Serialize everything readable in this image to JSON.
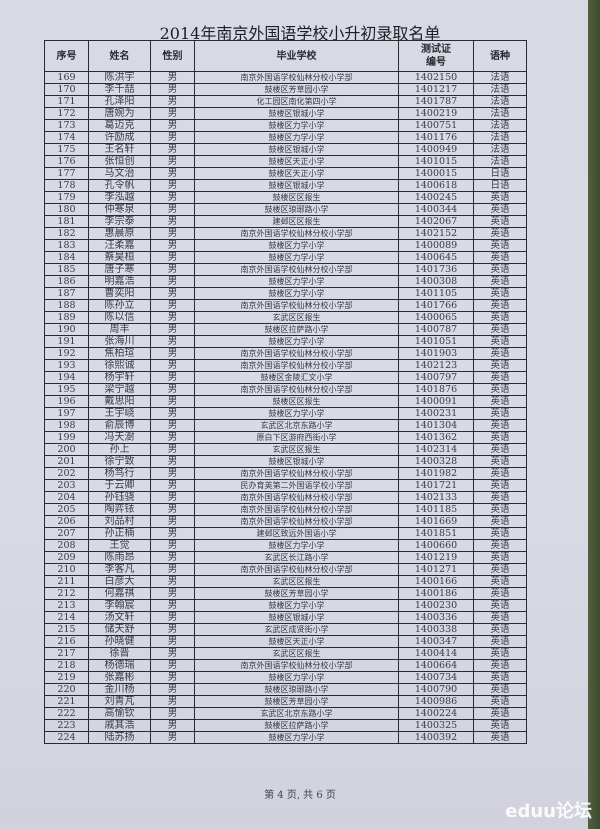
{
  "title": "2014年南京外国语学校小升初录取名单",
  "headers": {
    "no": "序号",
    "name": "姓名",
    "gender": "性别",
    "school": "毕业学校",
    "id_line1": "测试证",
    "id_line2": "编号",
    "lang": "语种"
  },
  "rows": [
    [
      "169",
      "陈洪宇",
      "男",
      "南京外国语学校仙林分校小学部",
      "1402150",
      "法语"
    ],
    [
      "170",
      "李千喆",
      "男",
      "鼓楼区芳草园小学",
      "1401217",
      "法语"
    ],
    [
      "171",
      "孔泽阳",
      "男",
      "化工园区南化第四小学",
      "1401787",
      "法语"
    ],
    [
      "172",
      "唐婉为",
      "男",
      "鼓楼区银城小学",
      "1400219",
      "法语"
    ],
    [
      "173",
      "葛迈克",
      "男",
      "鼓楼区力学小学",
      "1400751",
      "法语"
    ],
    [
      "174",
      "许励成",
      "男",
      "鼓楼区力学小学",
      "1401176",
      "法语"
    ],
    [
      "175",
      "王名轩",
      "男",
      "鼓楼区银城小学",
      "1400949",
      "法语"
    ],
    [
      "176",
      "张恒创",
      "男",
      "鼓楼区天正小学",
      "1401015",
      "法语"
    ],
    [
      "177",
      "马文治",
      "男",
      "鼓楼区天正小学",
      "1400015",
      "日语"
    ],
    [
      "178",
      "孔令帆",
      "男",
      "鼓楼区银城小学",
      "1400618",
      "日语"
    ],
    [
      "179",
      "李泓越",
      "男",
      "鼓楼区区报生",
      "1400245",
      "英语"
    ],
    [
      "180",
      "仲寒泉",
      "男",
      "鼓楼区琅琊路小学",
      "1400344",
      "英语"
    ],
    [
      "181",
      "李宗泰",
      "男",
      "建邺区区报生",
      "1402067",
      "英语"
    ],
    [
      "182",
      "惠晨原",
      "男",
      "南京外国语学校仙林分校小学部",
      "1402152",
      "英语"
    ],
    [
      "183",
      "汪柔嘉",
      "男",
      "鼓楼区力学小学",
      "1400089",
      "英语"
    ],
    [
      "184",
      "蔡昊桓",
      "男",
      "鼓楼区力学小学",
      "1400645",
      "英语"
    ],
    [
      "185",
      "唐子寒",
      "男",
      "南京外国语学校仙林分校小学部",
      "1401736",
      "英语"
    ],
    [
      "186",
      "明嘉浩",
      "男",
      "鼓楼区力学小学",
      "1400308",
      "英语"
    ],
    [
      "187",
      "曹奕阳",
      "男",
      "鼓楼区力学小学",
      "1401105",
      "英语"
    ],
    [
      "188",
      "陈孙立",
      "男",
      "南京外国语学校仙林分校小学部",
      "1401766",
      "英语"
    ],
    [
      "189",
      "陈以信",
      "男",
      "玄武区区报生",
      "1400065",
      "英语"
    ],
    [
      "190",
      "周丰",
      "男",
      "鼓楼区拉萨路小学",
      "1400787",
      "英语"
    ],
    [
      "191",
      "张海川",
      "男",
      "鼓楼区力学小学",
      "1401051",
      "英语"
    ],
    [
      "192",
      "焦柏瑄",
      "男",
      "南京外国语学校仙林分校小学部",
      "1401903",
      "英语"
    ],
    [
      "193",
      "徐熙诚",
      "男",
      "南京外国语学校仙林分校小学部",
      "1402123",
      "英语"
    ],
    [
      "194",
      "杨宇轩",
      "男",
      "鼓楼区金陵汇文小学",
      "1400797",
      "英语"
    ],
    [
      "195",
      "梁宁越",
      "男",
      "南京外国语学校仙林分校小学部",
      "1401876",
      "英语"
    ],
    [
      "196",
      "戴思阳",
      "男",
      "鼓楼区区报生",
      "1400091",
      "英语"
    ],
    [
      "197",
      "王宇峣",
      "男",
      "鼓楼区力学小学",
      "1400231",
      "英语"
    ],
    [
      "198",
      "俞辰博",
      "男",
      "玄武区北京东路小学",
      "1401304",
      "英语"
    ],
    [
      "199",
      "冯天澍",
      "男",
      "原白下区游府西街小学",
      "1401362",
      "英语"
    ],
    [
      "200",
      "孙上",
      "男",
      "玄武区区报生",
      "1402314",
      "英语"
    ],
    [
      "201",
      "徐宁致",
      "男",
      "鼓楼区银城小学",
      "1400328",
      "英语"
    ],
    [
      "202",
      "杨笃行",
      "男",
      "南京外国语学校仙林分校小学部",
      "1401982",
      "英语"
    ],
    [
      "203",
      "于云卿",
      "男",
      "民办育英第二外国语学校小学部",
      "1401721",
      "英语"
    ],
    [
      "204",
      "孙钰骁",
      "男",
      "南京外国语学校仙林分校小学部",
      "1402133",
      "英语"
    ],
    [
      "205",
      "陶弈铱",
      "男",
      "南京外国语学校仙林分校小学部",
      "1401185",
      "英语"
    ],
    [
      "206",
      "刘品村",
      "男",
      "南京外国语学校仙林分校小学部",
      "1401669",
      "英语"
    ],
    [
      "207",
      "孙正楠",
      "男",
      "建邺区致远外国语小学",
      "1401851",
      "英语"
    ],
    [
      "208",
      "王觉",
      "男",
      "鼓楼区力学小学",
      "1400660",
      "英语"
    ],
    [
      "209",
      "陈雨昂",
      "男",
      "玄武区长江路小学",
      "1401219",
      "英语"
    ],
    [
      "210",
      "李客凡",
      "男",
      "南京外国语学校仙林分校小学部",
      "1401271",
      "英语"
    ],
    [
      "211",
      "白彦大",
      "男",
      "玄武区区报生",
      "1400166",
      "英语"
    ],
    [
      "212",
      "何嘉祺",
      "男",
      "鼓楼区芳草园小学",
      "1400186",
      "英语"
    ],
    [
      "213",
      "李翰宸",
      "男",
      "鼓楼区力学小学",
      "1400230",
      "英语"
    ],
    [
      "214",
      "汤文轩",
      "男",
      "鼓楼区银城小学",
      "1400336",
      "英语"
    ],
    [
      "215",
      "储天舒",
      "男",
      "玄武区成贤街小学",
      "1400338",
      "英语"
    ],
    [
      "216",
      "孙晓健",
      "男",
      "鼓楼区天正小学",
      "1400347",
      "英语"
    ],
    [
      "217",
      "徐晋",
      "男",
      "玄武区区报生",
      "1400414",
      "英语"
    ],
    [
      "218",
      "杨德瑞",
      "男",
      "南京外国语学校仙林分校小学部",
      "1400664",
      "英语"
    ],
    [
      "219",
      "张嘉彬",
      "男",
      "鼓楼区力学小学",
      "1400734",
      "英语"
    ],
    [
      "220",
      "金川杨",
      "男",
      "鼓楼区琅琊路小学",
      "1400790",
      "英语"
    ],
    [
      "221",
      "刘青芃",
      "男",
      "鼓楼区芳草园小学",
      "1400986",
      "英语"
    ],
    [
      "222",
      "高愉钦",
      "男",
      "玄武区北京东路小学",
      "1400224",
      "英语"
    ],
    [
      "223",
      "戚其浩",
      "男",
      "鼓楼区拉萨路小学",
      "1400325",
      "英语"
    ],
    [
      "224",
      "陆苏扬",
      "男",
      "鼓楼区力学小学",
      "1400392",
      "英语"
    ]
  ],
  "footer": "第 4 页, 共 6 页",
  "watermark": "eduu论坛"
}
